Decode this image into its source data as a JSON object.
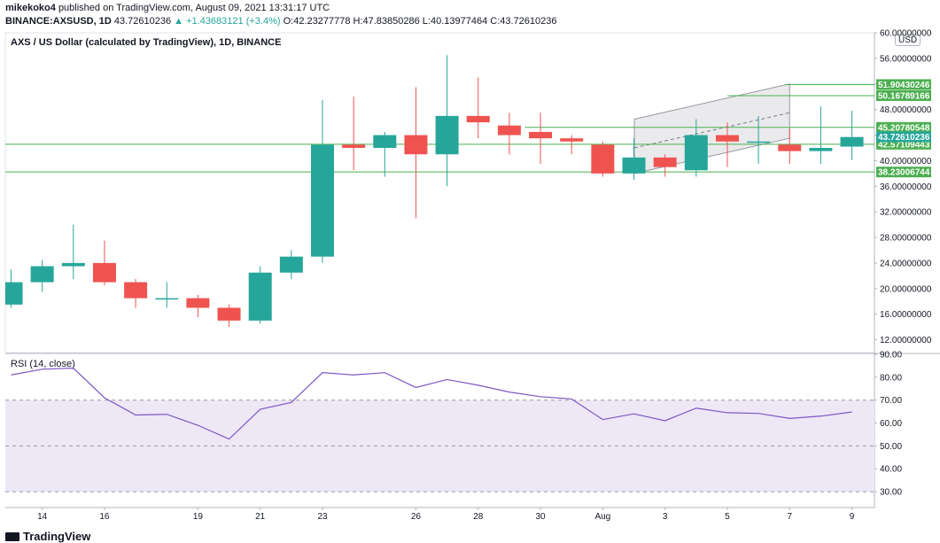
{
  "header": {
    "author": "mikekoko4",
    "published_text": "published on TradingView.com, August 09, 2021 13:31:17 UTC",
    "symbol": "BINANCE:AXSUSD, 1D",
    "price": "43.72610236",
    "change": "▲ +1.43683121 (+3.4%)",
    "ohlc": "O:42.23277778 H:47.83850286 L:40.13977464 C:43.72610236"
  },
  "chart_title": "AXS / US Dollar (calculated by TradingView), 1D, BINANCE",
  "currency_badge": "USD",
  "rsi_title": "RSI (14, close)",
  "brand": "TradingView",
  "colors": {
    "up": "#26a69a",
    "down": "#ef5350",
    "level": "#4caf50",
    "rsi": "#7e57c2",
    "band": "#ede7f6"
  },
  "chart_data": [
    {
      "type": "candlestick",
      "title": "AXS / US Dollar (calculated by TradingView), 1D, BINANCE",
      "ylim": [
        10,
        60
      ],
      "y_ticks": [
        "60.00000000",
        "56.00000000",
        "52.00000000",
        "48.00000000",
        "44.00000000",
        "40.00000000",
        "36.00000000",
        "32.00000000",
        "28.00000000",
        "24.00000000",
        "20.00000000",
        "16.00000000",
        "12.00000000"
      ],
      "x_ticks": [
        {
          "i": 1,
          "label": "14"
        },
        {
          "i": 3,
          "label": "16"
        },
        {
          "i": 6,
          "label": "19"
        },
        {
          "i": 8,
          "label": "21"
        },
        {
          "i": 10,
          "label": "23"
        },
        {
          "i": 13,
          "label": "26"
        },
        {
          "i": 15,
          "label": "28"
        },
        {
          "i": 17,
          "label": "30"
        },
        {
          "i": 19,
          "label": "Aug"
        },
        {
          "i": 21,
          "label": "3"
        },
        {
          "i": 23,
          "label": "5"
        },
        {
          "i": 25,
          "label": "7"
        },
        {
          "i": 27,
          "label": "9"
        }
      ],
      "candles": [
        {
          "o": 17.5,
          "h": 23.0,
          "l": 17.0,
          "c": 21.0
        },
        {
          "o": 21.0,
          "h": 24.5,
          "l": 19.5,
          "c": 23.5
        },
        {
          "o": 23.5,
          "h": 30.0,
          "l": 21.5,
          "c": 24.0
        },
        {
          "o": 24.0,
          "h": 27.5,
          "l": 20.5,
          "c": 21.0
        },
        {
          "o": 21.0,
          "h": 21.5,
          "l": 17.0,
          "c": 18.5
        },
        {
          "o": 18.5,
          "h": 21.0,
          "l": 17.0,
          "c": 18.5
        },
        {
          "o": 18.5,
          "h": 19.0,
          "l": 15.5,
          "c": 17.0
        },
        {
          "o": 17.0,
          "h": 17.5,
          "l": 14.0,
          "c": 15.0
        },
        {
          "o": 15.0,
          "h": 23.5,
          "l": 14.5,
          "c": 22.5
        },
        {
          "o": 22.5,
          "h": 26.0,
          "l": 21.5,
          "c": 25.0
        },
        {
          "o": 25.0,
          "h": 49.5,
          "l": 24.0,
          "c": 42.5
        },
        {
          "o": 42.5,
          "h": 50.0,
          "l": 38.5,
          "c": 42.0
        },
        {
          "o": 42.0,
          "h": 44.5,
          "l": 37.5,
          "c": 44.0
        },
        {
          "o": 44.0,
          "h": 51.5,
          "l": 31.0,
          "c": 41.0
        },
        {
          "o": 41.0,
          "h": 56.5,
          "l": 36.0,
          "c": 47.0
        },
        {
          "o": 47.0,
          "h": 53.0,
          "l": 43.5,
          "c": 46.0
        },
        {
          "o": 45.5,
          "h": 47.5,
          "l": 41.0,
          "c": 44.0
        },
        {
          "o": 44.5,
          "h": 47.5,
          "l": 39.5,
          "c": 43.5
        },
        {
          "o": 43.5,
          "h": 44.0,
          "l": 41.0,
          "c": 43.0
        },
        {
          "o": 42.5,
          "h": 43.0,
          "l": 37.5,
          "c": 38.0
        },
        {
          "o": 38.0,
          "h": 43.5,
          "l": 37.0,
          "c": 40.5
        },
        {
          "o": 40.5,
          "h": 41.0,
          "l": 37.5,
          "c": 39.0
        },
        {
          "o": 38.5,
          "h": 46.5,
          "l": 37.5,
          "c": 44.0
        },
        {
          "o": 44.0,
          "h": 46.0,
          "l": 39.0,
          "c": 43.0
        },
        {
          "o": 43.0,
          "h": 47.0,
          "l": 39.5,
          "c": 43.0
        },
        {
          "o": 42.5,
          "h": 45.0,
          "l": 39.5,
          "c": 41.5
        },
        {
          "o": 41.5,
          "h": 48.5,
          "l": 39.5,
          "c": 42.0
        },
        {
          "o": 42.2,
          "h": 47.8,
          "l": 40.1,
          "c": 43.7
        }
      ],
      "levels": [
        {
          "value": 51.90430246,
          "label": "51.90430246"
        },
        {
          "value": 50.16789166,
          "label": "50.16789166"
        },
        {
          "value": 45.20780548,
          "label": "45.20780548"
        },
        {
          "value": 42.57109443,
          "label": "42.57109443"
        },
        {
          "value": 38.23006744,
          "label": "38.23006744"
        }
      ],
      "last_price": {
        "value": 43.72610236,
        "label": "43.72610236"
      },
      "channel": {
        "i_start": 20,
        "i_end": 25,
        "top": [
          46.5,
          52.0
        ],
        "bottom": [
          38.0,
          43.5
        ],
        "mid": [
          42.0,
          47.5
        ]
      }
    },
    {
      "type": "line",
      "title": "RSI (14, close)",
      "ylim": [
        25,
        90
      ],
      "y_ticks": [
        "90.00",
        "80.00",
        "70.00",
        "60.00",
        "50.00",
        "40.00",
        "30.00"
      ],
      "bands": [
        30,
        50,
        70
      ],
      "values": [
        81,
        83.5,
        84,
        71,
        63.5,
        63.8,
        59,
        53,
        66,
        69,
        82,
        81,
        82,
        75.5,
        79,
        76.5,
        73.5,
        71.5,
        70.5,
        61.5,
        64,
        61,
        66.5,
        64.5,
        64.2,
        62,
        63,
        64.8
      ]
    }
  ]
}
